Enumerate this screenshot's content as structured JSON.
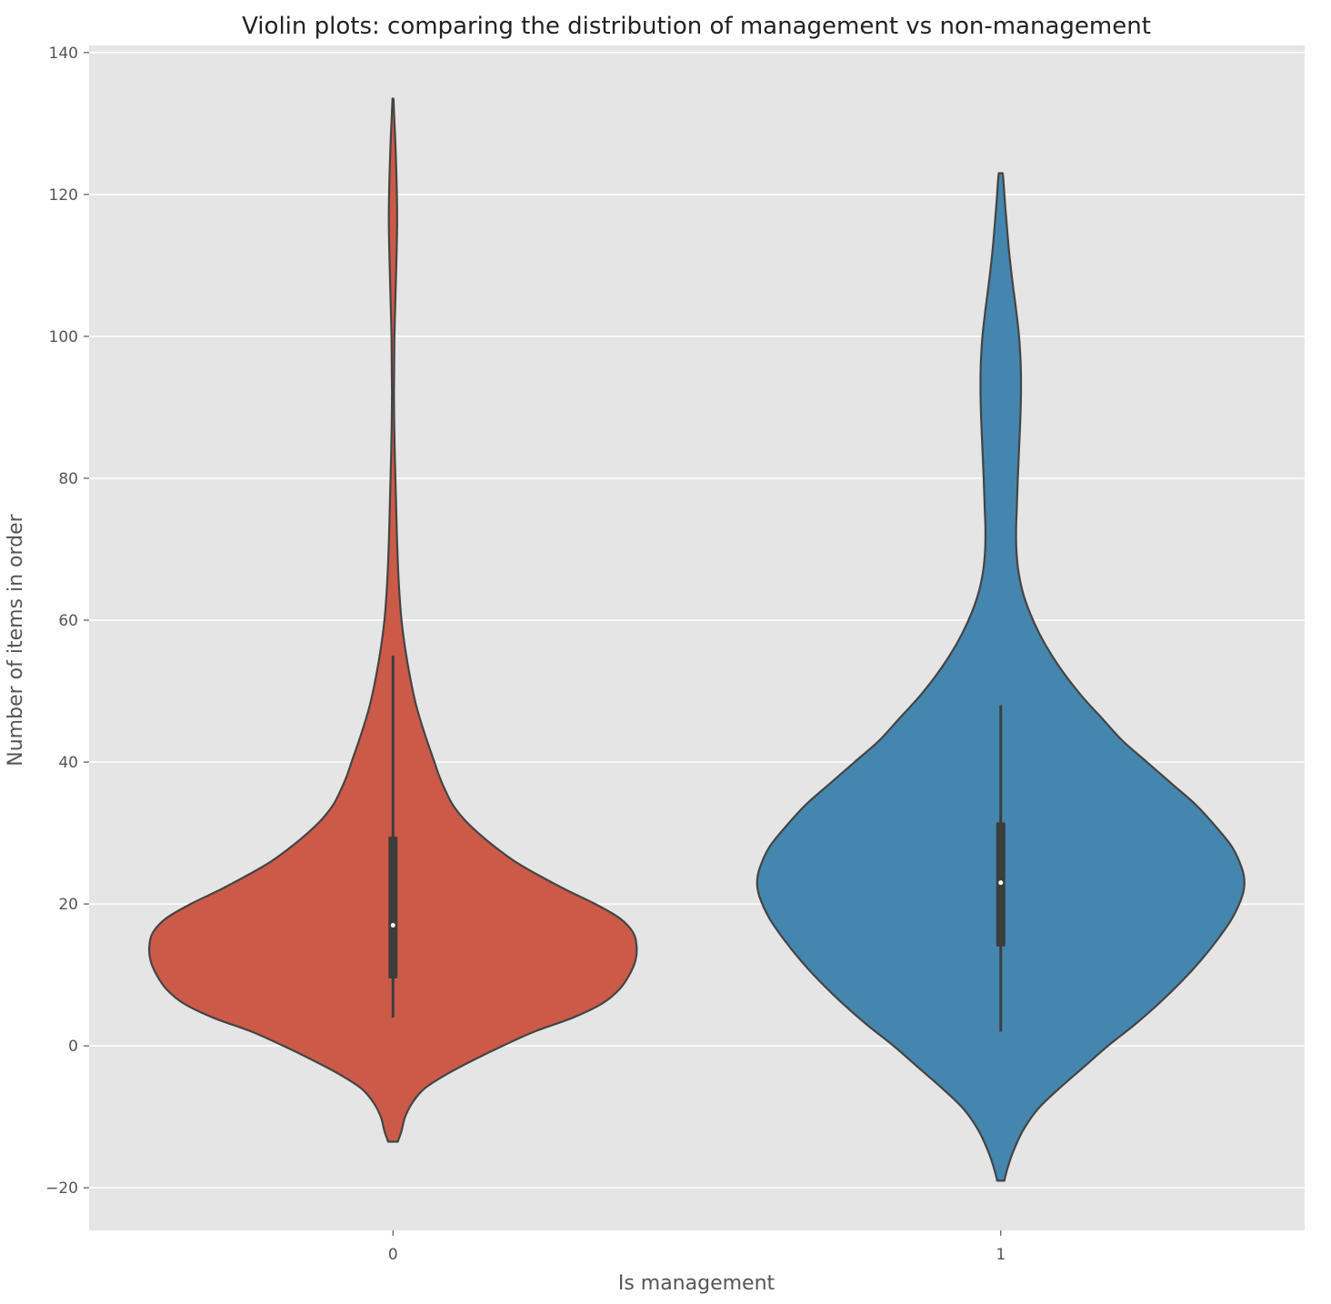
{
  "chart_data": {
    "type": "violin",
    "title": "Violin plots: comparing the distribution of management vs non-management",
    "xlabel": "Is management",
    "ylabel": "Number of items in order",
    "categories": [
      "0",
      "1"
    ],
    "ylim": [
      -26,
      141
    ],
    "yticks": [
      -20,
      0,
      20,
      40,
      60,
      80,
      100,
      120,
      140
    ],
    "grid": true,
    "background": "#E5E5E5",
    "outline_color": "#444444",
    "series": [
      {
        "category": "0",
        "color": "#CC5A48",
        "min": 4,
        "q1": 9.5,
        "median": 17,
        "q3": 29.5,
        "max": 55,
        "density": [
          [
            -13.5,
            0.02
          ],
          [
            -13,
            0.025
          ],
          [
            -12,
            0.035
          ],
          [
            -10,
            0.05
          ],
          [
            -8,
            0.08
          ],
          [
            -6,
            0.13
          ],
          [
            -4,
            0.22
          ],
          [
            -2,
            0.33
          ],
          [
            0,
            0.45
          ],
          [
            2,
            0.58
          ],
          [
            4,
            0.74
          ],
          [
            6,
            0.86
          ],
          [
            8,
            0.93
          ],
          [
            10,
            0.97
          ],
          [
            12,
            0.995
          ],
          [
            14,
            1.0
          ],
          [
            16,
            0.985
          ],
          [
            18,
            0.93
          ],
          [
            20,
            0.83
          ],
          [
            22,
            0.71
          ],
          [
            24,
            0.6
          ],
          [
            26,
            0.5
          ],
          [
            28,
            0.42
          ],
          [
            30,
            0.35
          ],
          [
            32,
            0.29
          ],
          [
            34,
            0.245
          ],
          [
            36,
            0.215
          ],
          [
            38,
            0.19
          ],
          [
            40,
            0.17
          ],
          [
            44,
            0.13
          ],
          [
            48,
            0.095
          ],
          [
            52,
            0.07
          ],
          [
            56,
            0.05
          ],
          [
            60,
            0.035
          ],
          [
            64,
            0.026
          ],
          [
            68,
            0.02
          ],
          [
            72,
            0.016
          ],
          [
            76,
            0.013
          ],
          [
            80,
            0.01
          ],
          [
            84,
            0.007
          ],
          [
            88,
            0.005
          ],
          [
            92,
            0.004
          ],
          [
            96,
            0.005
          ],
          [
            100,
            0.006
          ],
          [
            104,
            0.009
          ],
          [
            108,
            0.012
          ],
          [
            112,
            0.015
          ],
          [
            116,
            0.017
          ],
          [
            120,
            0.016
          ],
          [
            124,
            0.013
          ],
          [
            128,
            0.009
          ],
          [
            131,
            0.005
          ],
          [
            133.5,
            0.002
          ]
        ]
      },
      {
        "category": "1",
        "color": "#4586AE",
        "min": 2,
        "q1": 14,
        "median": 23,
        "q3": 31.5,
        "max": 48,
        "density": [
          [
            -19,
            0.015
          ],
          [
            -18.5,
            0.018
          ],
          [
            -17,
            0.03
          ],
          [
            -15,
            0.05
          ],
          [
            -12,
            0.09
          ],
          [
            -9,
            0.15
          ],
          [
            -6,
            0.24
          ],
          [
            -3,
            0.34
          ],
          [
            0,
            0.44
          ],
          [
            3,
            0.55
          ],
          [
            6,
            0.65
          ],
          [
            9,
            0.74
          ],
          [
            12,
            0.82
          ],
          [
            15,
            0.89
          ],
          [
            18,
            0.95
          ],
          [
            21,
            0.99
          ],
          [
            23,
            1.0
          ],
          [
            25,
            0.99
          ],
          [
            28,
            0.95
          ],
          [
            31,
            0.88
          ],
          [
            34,
            0.8
          ],
          [
            37,
            0.7
          ],
          [
            40,
            0.6
          ],
          [
            43,
            0.5
          ],
          [
            46,
            0.42
          ],
          [
            49,
            0.34
          ],
          [
            52,
            0.27
          ],
          [
            55,
            0.21
          ],
          [
            58,
            0.16
          ],
          [
            61,
            0.12
          ],
          [
            64,
            0.09
          ],
          [
            67,
            0.072
          ],
          [
            70,
            0.064
          ],
          [
            73,
            0.063
          ],
          [
            76,
            0.066
          ],
          [
            80,
            0.07
          ],
          [
            84,
            0.075
          ],
          [
            88,
            0.08
          ],
          [
            92,
            0.083
          ],
          [
            96,
            0.082
          ],
          [
            100,
            0.075
          ],
          [
            104,
            0.062
          ],
          [
            108,
            0.047
          ],
          [
            112,
            0.034
          ],
          [
            116,
            0.024
          ],
          [
            119,
            0.017
          ],
          [
            122,
            0.011
          ],
          [
            123,
            0.008
          ]
        ]
      }
    ]
  }
}
